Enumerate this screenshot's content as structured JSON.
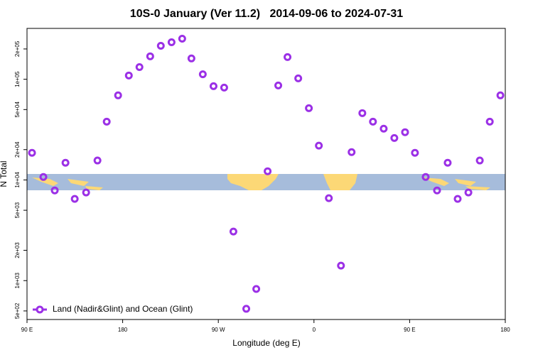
{
  "chart_data": {
    "type": "scatter",
    "title": "10S-0 January (Ver 11.2)   2014-09-06 to 2024-07-31",
    "xlabel": "Longitude (deg E)",
    "ylabel": "N Total",
    "xlim": [
      90,
      540
    ],
    "xticks": [
      {
        "value": 90,
        "label": "90 E"
      },
      180,
      {
        "value": 270,
        "label": "90 W"
      },
      {
        "value": 360,
        "label": "0"
      },
      {
        "value": 450,
        "label": "90 E"
      },
      {
        "value": 540,
        "label": "180"
      }
    ],
    "ylim": [
      411,
      320000
    ],
    "log_y": true,
    "yticks": [
      {
        "value": 500,
        "label": "5e+02"
      },
      {
        "value": 1000,
        "label": "1e+03"
      },
      {
        "value": 2000,
        "label": "2e+03"
      },
      {
        "value": 5000,
        "label": "5e+03"
      },
      {
        "value": 10000,
        "label": "1e+04"
      },
      {
        "value": 20000,
        "label": "2e+04"
      },
      {
        "value": 50000,
        "label": "5e+04"
      },
      {
        "value": 100000,
        "label": "1e+05"
      },
      {
        "value": 200000,
        "label": "2e+05"
      }
    ],
    "legend": "bottom-left",
    "series": [
      {
        "name": "Land (Nadir&Glint) and Ocean (Glint)",
        "color": "#9b30e6",
        "x": [
          94.7,
          105.4,
          116.1,
          126.2,
          134.9,
          145.6,
          156.3,
          165.0,
          175.7,
          185.8,
          195.8,
          205.9,
          215.9,
          226.0,
          236.0,
          244.7,
          255.4,
          265.5,
          275.5,
          284.2,
          296.3,
          305.7,
          316.4,
          326.4,
          335.1,
          345.2,
          355.2,
          364.6,
          374.0,
          385.4,
          395.4,
          405.5,
          415.5,
          425.6,
          435.6,
          445.7,
          455.0,
          465.1,
          475.8,
          485.8,
          495.2,
          505.3,
          516.0,
          525.4,
          535.4
        ],
        "values": [
          18600,
          10700,
          7870,
          14800,
          6480,
          7500,
          15600,
          37900,
          69200,
          109000,
          132000,
          169000,
          215000,
          233000,
          253000,
          161000,
          112000,
          85400,
          82700,
          3070,
          525,
          826,
          12200,
          86800,
          166000,
          102000,
          51600,
          21900,
          6590,
          1410,
          18900,
          46100,
          37900,
          32300,
          26100,
          29800,
          18600,
          10700,
          7870,
          14800,
          6480,
          7500,
          15600,
          37900,
          69200
        ]
      }
    ]
  }
}
